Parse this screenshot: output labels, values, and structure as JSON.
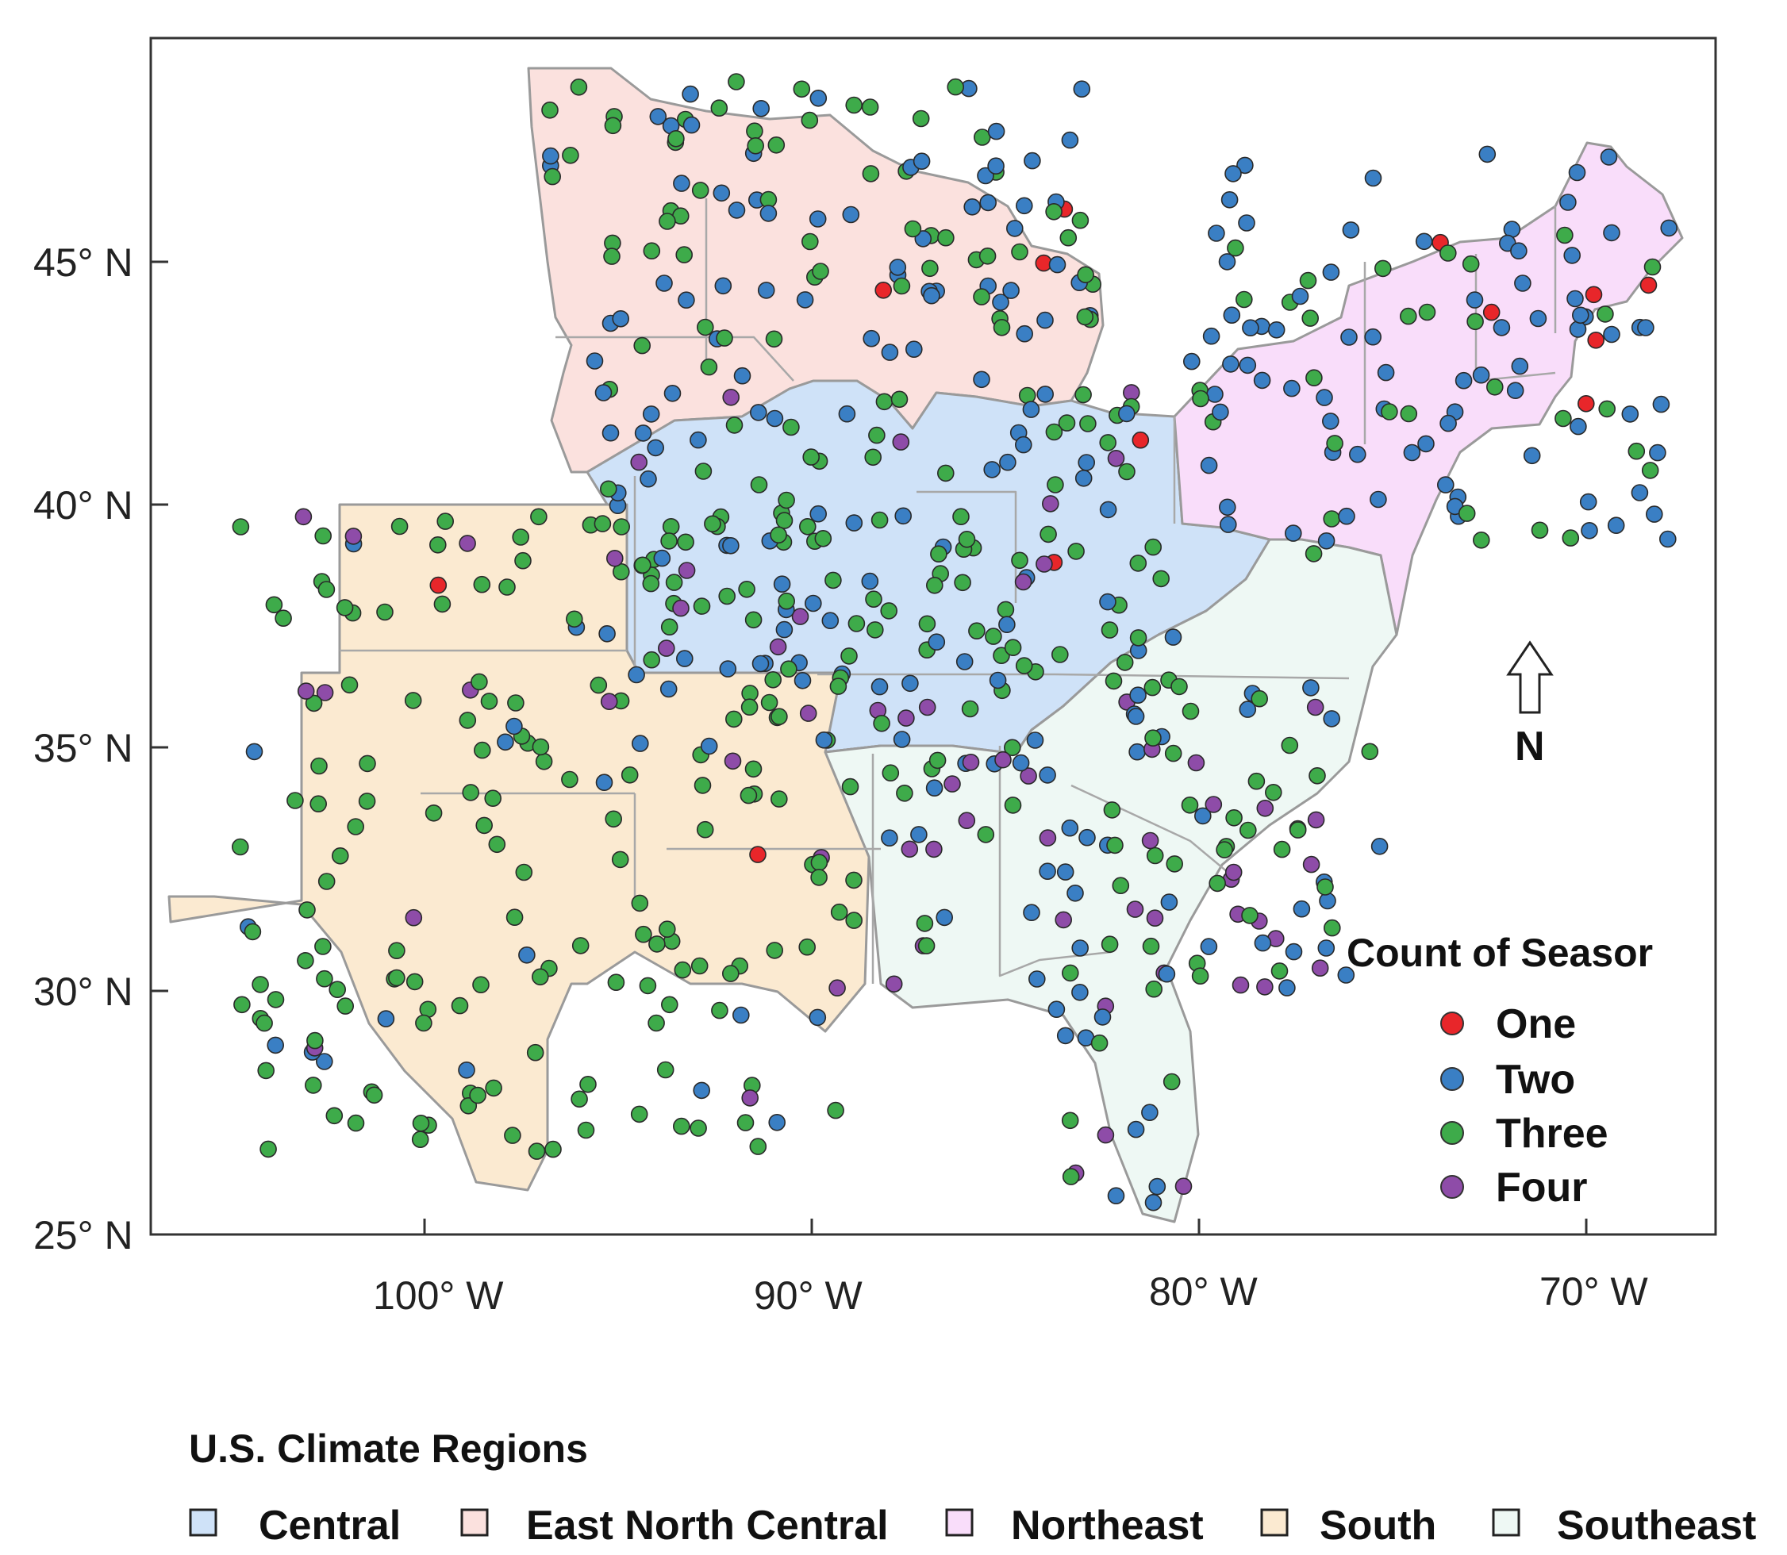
{
  "axes": {
    "lat_labels": [
      "45° N",
      "40° N",
      "35° N",
      "30° N",
      "25° N"
    ],
    "lon_labels": [
      "100° W",
      "90° W",
      "80° W",
      "70° W"
    ]
  },
  "north_arrow": {
    "label": "N"
  },
  "season_legend": {
    "title": "Count of Seasor",
    "items": [
      {
        "label": "One",
        "color": "#e8262a"
      },
      {
        "label": "Two",
        "color": "#3a7fc4"
      },
      {
        "label": "Three",
        "color": "#3eab4a"
      },
      {
        "label": "Four",
        "color": "#8e4ca8"
      }
    ]
  },
  "regions_legend": {
    "title": "U.S. Climate Regions",
    "items": [
      {
        "label": "Central",
        "color": "#cfe2f8"
      },
      {
        "label": "East North Central",
        "color": "#fbe1de"
      },
      {
        "label": "Northeast",
        "color": "#f9ddfa"
      },
      {
        "label": "South",
        "color": "#fbead1"
      },
      {
        "label": "Southeast",
        "color": "#eef8f4"
      }
    ]
  }
}
